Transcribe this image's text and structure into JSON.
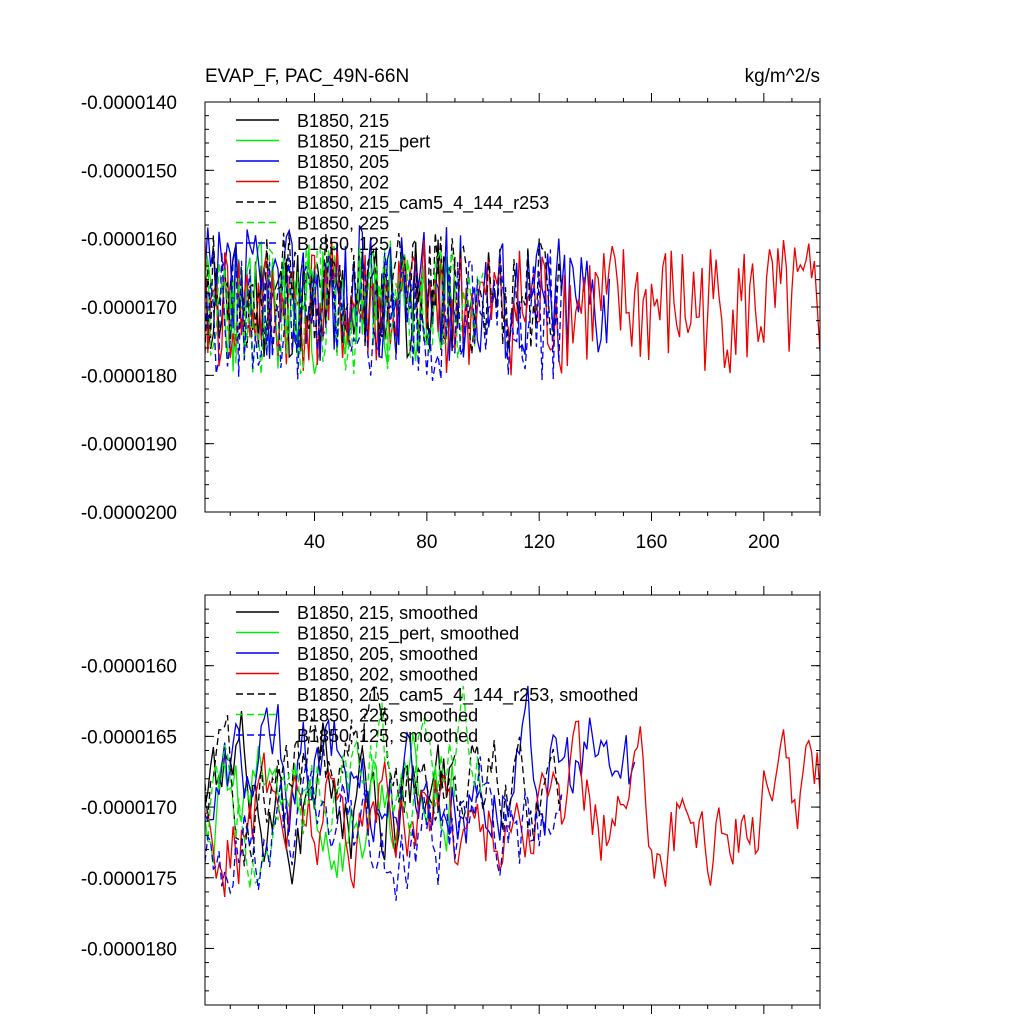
{
  "chart_data": [
    {
      "type": "line",
      "title": "EVAP_F, PAC_49N-66N",
      "units": "kg/m^2/s",
      "xlabel": "",
      "ylabel": "",
      "xlim": [
        1,
        220
      ],
      "ylim": [
        -2e-05,
        -1.4e-05
      ],
      "x_ticks": [
        40,
        80,
        120,
        160,
        200
      ],
      "x_tick_labels": [
        "40",
        "80",
        "120",
        "160",
        "200"
      ],
      "y_ticks": [
        -1.4e-05,
        -1.5e-05,
        -1.6e-05,
        -1.7e-05,
        -1.8e-05,
        -1.9e-05,
        -2e-05
      ],
      "y_tick_labels": [
        "-0.0000140",
        "-0.0000150",
        "-0.0000160",
        "-0.0000170",
        "-0.0000180",
        "-0.0000190",
        "-0.0000200"
      ],
      "legend_position": "top-left",
      "grid": false,
      "series": [
        {
          "name": "B1850, 215",
          "color": "#000000",
          "dash": "solid",
          "length": 90,
          "mean": -1.69e-05,
          "amplitude": 9e-07,
          "seed": 11
        },
        {
          "name": "B1850, 215_pert",
          "color": "#00ee00",
          "dash": "solid",
          "length": 90,
          "mean": -1.7e-05,
          "amplitude": 1e-06,
          "seed": 23
        },
        {
          "name": "B1850, 205",
          "color": "#0000ee",
          "dash": "solid",
          "length": 145,
          "mean": -1.68e-05,
          "amplitude": 1e-06,
          "seed": 37
        },
        {
          "name": "B1850, 202",
          "color": "#ee0000",
          "dash": "solid",
          "length": 220,
          "mean": -1.7e-05,
          "amplitude": 1e-06,
          "seed": 41
        },
        {
          "name": "B1850, 215_cam5_4_144_r253",
          "color": "#000000",
          "dash": "dashed",
          "length": 128,
          "mean": -1.68e-05,
          "amplitude": 9e-07,
          "seed": 53
        },
        {
          "name": "B1850, 225",
          "color": "#00ee00",
          "dash": "dashed",
          "length": 100,
          "mean": -1.7e-05,
          "amplitude": 1e-06,
          "seed": 67
        },
        {
          "name": "B1850, 125",
          "color": "#0000ee",
          "dash": "dashed",
          "length": 128,
          "mean": -1.71e-05,
          "amplitude": 1e-06,
          "seed": 79
        }
      ]
    },
    {
      "type": "line",
      "title": "",
      "xlabel": "",
      "ylabel": "",
      "xlim": [
        1,
        220
      ],
      "ylim": [
        -1.84e-05,
        -1.55e-05
      ],
      "x_ticks": [
        40,
        80,
        120,
        160,
        200
      ],
      "x_tick_labels": [],
      "y_ticks": [
        -1.6e-05,
        -1.65e-05,
        -1.7e-05,
        -1.75e-05,
        -1.8e-05
      ],
      "y_tick_labels": [
        "-0.0000160",
        "-0.0000165",
        "-0.0000170",
        "-0.0000175",
        "-0.0000180"
      ],
      "legend_position": "top-left",
      "grid": false,
      "series": [
        {
          "name": "B1850, 215, smoothed",
          "color": "#000000",
          "dash": "solid",
          "length": 90,
          "mean": -1.69e-05,
          "amplitude": 4e-07,
          "seed": 11
        },
        {
          "name": "B1850, 215_pert, smoothed",
          "color": "#00ee00",
          "dash": "solid",
          "length": 90,
          "mean": -1.7e-05,
          "amplitude": 4e-07,
          "seed": 23
        },
        {
          "name": "B1850, 205, smoothed",
          "color": "#0000ee",
          "dash": "solid",
          "length": 154,
          "mean": -1.68e-05,
          "amplitude": 4e-07,
          "seed": 37
        },
        {
          "name": "B1850, 202, smoothed",
          "color": "#ee0000",
          "dash": "solid",
          "length": 220,
          "mean": -1.7e-05,
          "amplitude": 4e-07,
          "seed": 41
        },
        {
          "name": "B1850, 215_cam5_4_144_r253, smoothed",
          "color": "#000000",
          "dash": "dashed",
          "length": 128,
          "mean": -1.68e-05,
          "amplitude": 4e-07,
          "seed": 53
        },
        {
          "name": "B1850, 225, smoothed",
          "color": "#00ee00",
          "dash": "dashed",
          "length": 100,
          "mean": -1.69e-05,
          "amplitude": 4e-07,
          "seed": 67
        },
        {
          "name": "B1850, 125, smoothed",
          "color": "#0000ee",
          "dash": "dashed",
          "length": 128,
          "mean": -1.72e-05,
          "amplitude": 4e-07,
          "seed": 79
        }
      ]
    }
  ]
}
